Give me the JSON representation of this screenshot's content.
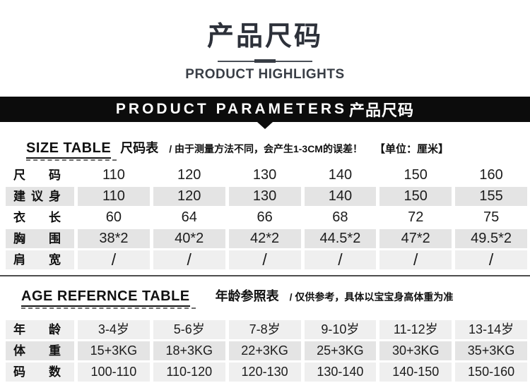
{
  "page_header": {
    "title": "产品尺码",
    "subtitle": "PRODUCT HIGHLIGHTS"
  },
  "banner": {
    "text_en": "PRODUCT PARAMETERS",
    "text_cn": "产品尺码"
  },
  "size_table": {
    "title_en": "SIZE TABLE",
    "title_cn": "尺码表",
    "note": "/ 由于测量方法不同，会产生1-3CM的误差！",
    "unit": "【单位：厘米】",
    "rows": [
      {
        "label": "尺码",
        "bg": "white",
        "values": [
          "110",
          "120",
          "130",
          "140",
          "150",
          "160"
        ]
      },
      {
        "label": "建议身高",
        "bg": "gray",
        "values": [
          "110",
          "120",
          "130",
          "140",
          "150",
          "155"
        ]
      },
      {
        "label": "衣长",
        "bg": "white",
        "values": [
          "60",
          "64",
          "66",
          "68",
          "72",
          "75"
        ]
      },
      {
        "label": "胸围",
        "bg": "gray",
        "values": [
          "38*2",
          "40*2",
          "42*2",
          "44.5*2",
          "47*2",
          "49.5*2"
        ]
      },
      {
        "label": "肩宽",
        "bg": "light",
        "values": [
          "/",
          "/",
          "/",
          "/",
          "/",
          "/"
        ]
      }
    ]
  },
  "age_table": {
    "title_en": "AGE REFERNCE TABLE",
    "title_cn": "年龄参照表",
    "note": "/ 仅供参考，具体以宝宝身高体重为准",
    "rows": [
      {
        "label": "年龄",
        "bg": "light",
        "values": [
          "3-4岁",
          "5-6岁",
          "7-8岁",
          "9-10岁",
          "11-12岁",
          "13-14岁"
        ]
      },
      {
        "label": "体重",
        "bg": "gray",
        "values": [
          "15+3KG",
          "18+3KG",
          "22+3KG",
          "25+3KG",
          "30+3KG",
          "35+3KG"
        ]
      },
      {
        "label": "码数",
        "bg": "light",
        "values": [
          "100-110",
          "110-120",
          "120-130",
          "130-140",
          "140-150",
          "150-160"
        ]
      }
    ]
  },
  "colors": {
    "banner_bg": "#0c0c0c",
    "row_gray": "#e4e4e4",
    "row_light": "#efefef",
    "title_text": "#2d313a",
    "divider": "#4d4d4d"
  }
}
